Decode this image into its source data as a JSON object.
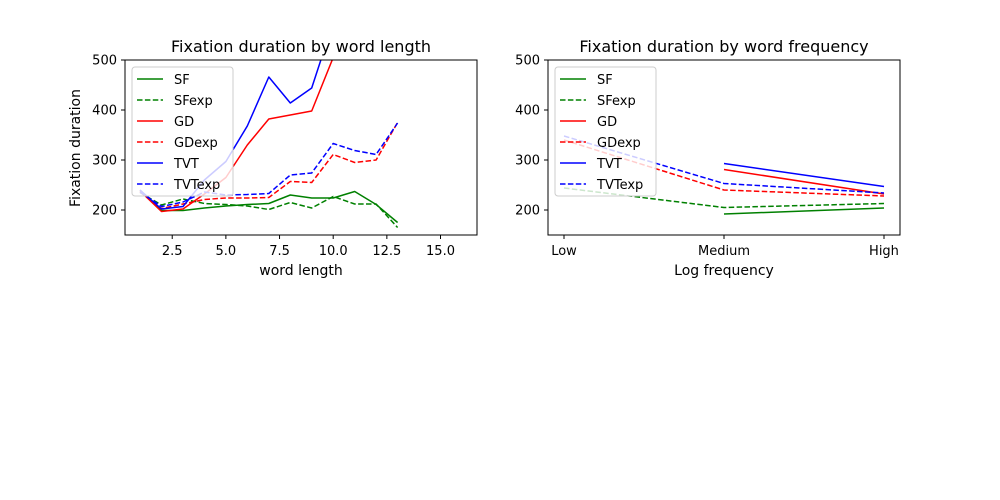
{
  "chart_data": [
    {
      "type": "line",
      "title": "Fixation duration by word length",
      "xlabel": "word length",
      "ylabel": "Fixation duration",
      "xlim": [
        0.3,
        16.7
      ],
      "ylim": [
        150,
        500
      ],
      "xticks": [
        2.5,
        5.0,
        7.5,
        10.0,
        12.5,
        15.0
      ],
      "xtick_labels": [
        "2.5",
        "5.0",
        "7.5",
        "10.0",
        "12.5",
        "15.0"
      ],
      "yticks": [
        200,
        300,
        400,
        500
      ],
      "ytick_labels": [
        "200",
        "300",
        "400",
        "500"
      ],
      "legend_position": "upper-left",
      "grid": false,
      "series": [
        {
          "name": "SF",
          "color": "#008000",
          "dashed": false,
          "x": [
            1,
            2,
            3,
            4,
            5,
            6,
            7,
            8,
            9,
            10,
            11,
            12,
            13
          ],
          "y": [
            240,
            199,
            199,
            204,
            208,
            211,
            213,
            230,
            224,
            224,
            237,
            211,
            175
          ]
        },
        {
          "name": "SFexp",
          "color": "#008000",
          "dashed": true,
          "x": [
            1,
            2,
            3,
            4,
            5,
            6,
            7,
            8,
            9,
            10,
            11,
            12,
            13
          ],
          "y": [
            235,
            210,
            222,
            213,
            211,
            208,
            201,
            215,
            204,
            227,
            212,
            212,
            165
          ]
        },
        {
          "name": "GD",
          "color": "#ff0000",
          "dashed": false,
          "x": [
            1,
            2,
            3,
            4,
            5,
            6,
            7,
            8,
            9,
            10
          ],
          "y": [
            238,
            197,
            202,
            232,
            265,
            330,
            382,
            390,
            398,
            505
          ]
        },
        {
          "name": "GDexp",
          "color": "#ff0000",
          "dashed": true,
          "x": [
            1,
            2,
            3,
            4,
            5,
            6,
            7,
            8,
            9,
            10,
            11,
            12,
            13
          ],
          "y": [
            236,
            203,
            212,
            221,
            224,
            224,
            225,
            257,
            255,
            311,
            295,
            300,
            375
          ]
        },
        {
          "name": "TVT",
          "color": "#0000ff",
          "dashed": false,
          "x": [
            1,
            2,
            3,
            4,
            5,
            6,
            7,
            8,
            9,
            9.5
          ],
          "y": [
            240,
            202,
            207,
            260,
            297,
            368,
            466,
            414,
            444,
            510
          ]
        },
        {
          "name": "TVTexp",
          "color": "#0000ff",
          "dashed": true,
          "x": [
            1,
            2,
            3,
            4,
            5,
            6,
            7,
            8,
            9,
            10,
            11,
            12,
            13
          ],
          "y": [
            236,
            207,
            216,
            236,
            230,
            231,
            233,
            270,
            274,
            333,
            319,
            311,
            374
          ]
        }
      ]
    },
    {
      "type": "line",
      "title": "Fixation duration by word frequency",
      "xlabel": "Log frequency",
      "ylabel": "",
      "xlim": [
        -0.1,
        2.1
      ],
      "ylim": [
        150,
        500
      ],
      "categories": [
        "Low",
        "Medium",
        "High"
      ],
      "yticks": [
        200,
        300,
        400,
        500
      ],
      "ytick_labels": [
        "200",
        "300",
        "400",
        "500"
      ],
      "legend_position": "upper-left",
      "grid": false,
      "series": [
        {
          "name": "SF",
          "color": "#008000",
          "dashed": false,
          "x": [
            1,
            2
          ],
          "y": [
            192,
            204
          ]
        },
        {
          "name": "SFexp",
          "color": "#008000",
          "dashed": true,
          "x": [
            0,
            1,
            2
          ],
          "y": [
            244,
            205,
            213
          ]
        },
        {
          "name": "GD",
          "color": "#ff0000",
          "dashed": false,
          "x": [
            1,
            2
          ],
          "y": [
            281,
            232
          ]
        },
        {
          "name": "GDexp",
          "color": "#ff0000",
          "dashed": true,
          "x": [
            0,
            1,
            2
          ],
          "y": [
            340,
            240,
            228
          ]
        },
        {
          "name": "TVT",
          "color": "#0000ff",
          "dashed": false,
          "x": [
            1,
            2
          ],
          "y": [
            293,
            247
          ]
        },
        {
          "name": "TVTexp",
          "color": "#0000ff",
          "dashed": true,
          "x": [
            0,
            1,
            2
          ],
          "y": [
            348,
            253,
            234
          ]
        }
      ]
    }
  ]
}
